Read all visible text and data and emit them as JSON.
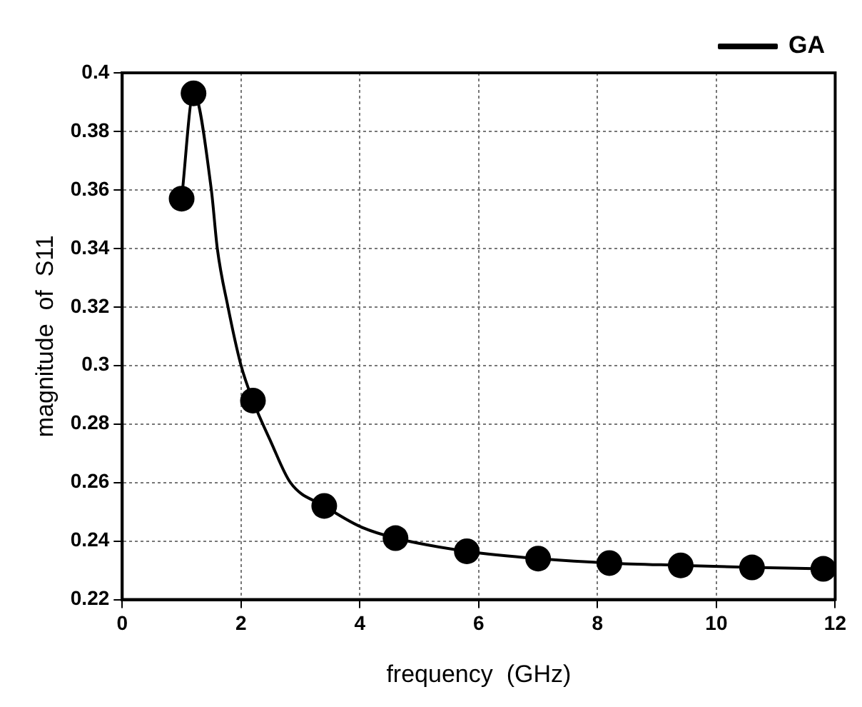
{
  "chart_data": {
    "type": "line",
    "xlabel": "frequency  (GHz)",
    "ylabel": "magnitude  of  S11",
    "series": [
      {
        "name": "GA",
        "color": "#000000",
        "marker": "none",
        "line_style": "solid",
        "x": [
          1.0,
          1.2,
          1.5,
          1.6,
          1.78,
          2.0,
          2.2,
          2.5,
          2.83,
          3.4,
          4.0,
          4.6,
          5.8,
          7.0,
          8.2,
          9.4,
          10.6,
          11.8
        ],
        "values": [
          0.357,
          0.393,
          0.36,
          0.34,
          0.32,
          0.3,
          0.288,
          0.274,
          0.26,
          0.252,
          0.245,
          0.241,
          0.2365,
          0.234,
          0.2325,
          0.2317,
          0.231,
          0.2305
        ]
      },
      {
        "type": "scatter",
        "color": "#000000",
        "marker": "circle",
        "x": [
          1.0,
          1.2,
          2.2,
          3.4,
          4.6,
          5.8,
          7.0,
          8.2,
          9.4,
          10.6,
          11.8
        ],
        "values": [
          0.357,
          0.393,
          0.288,
          0.252,
          0.241,
          0.2365,
          0.234,
          0.2325,
          0.2317,
          0.231,
          0.2305
        ]
      }
    ],
    "xlim": [
      0,
      12
    ],
    "xticks": [
      0,
      2,
      4,
      6,
      8,
      10,
      12
    ],
    "ylim": [
      0.22,
      0.4
    ],
    "yticks": [
      0.22,
      0.24,
      0.26,
      0.28,
      0.3,
      0.32,
      0.34,
      0.36,
      0.38,
      0.4
    ],
    "grid": true,
    "legend": "top right"
  }
}
